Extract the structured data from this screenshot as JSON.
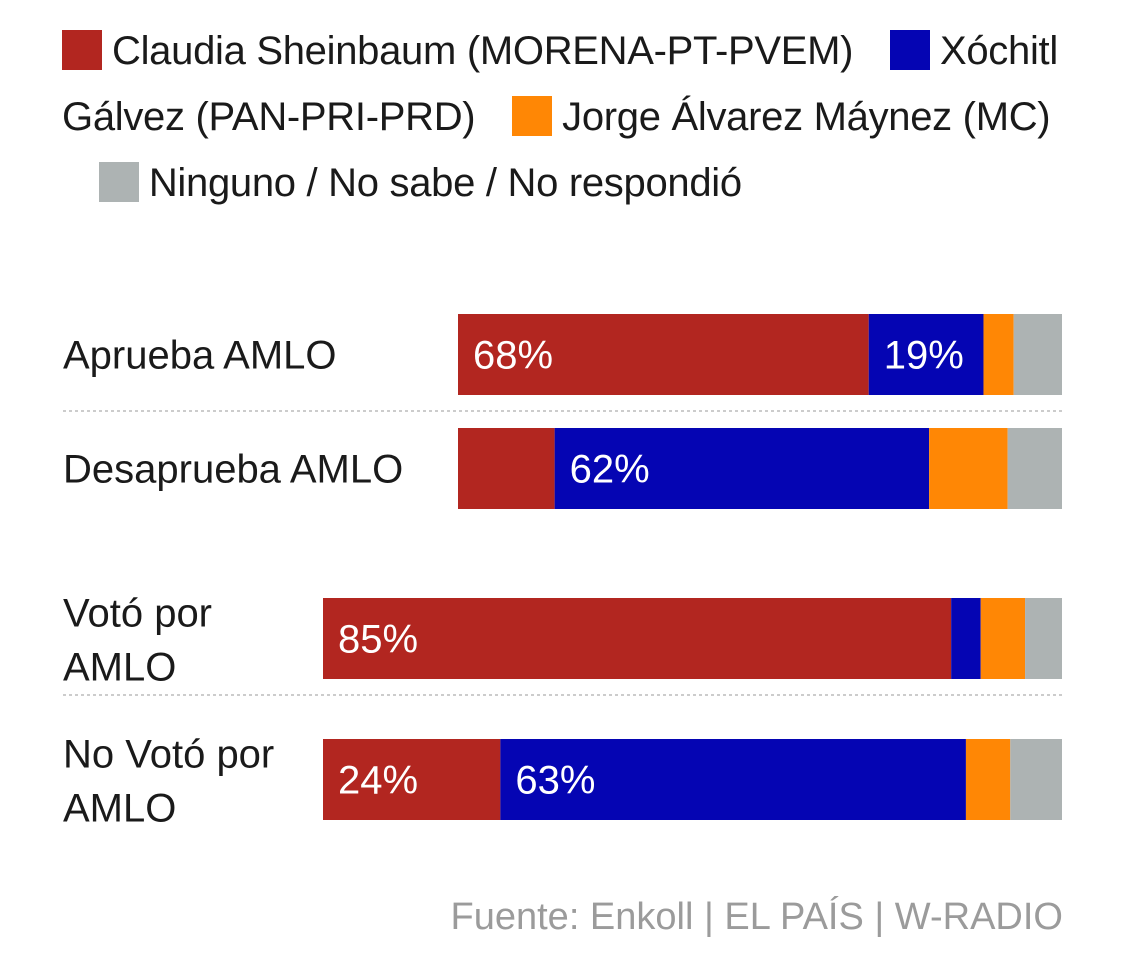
{
  "colors": {
    "sheinbaum": "#b22620",
    "galvez": "#0505b3",
    "maynez": "#ff8705",
    "ninguno": "#adb3b3",
    "separator": "#cccccc",
    "text": "#1a1a1a",
    "source": "#9b9b9b"
  },
  "legend": [
    {
      "label": "Claudia Sheinbaum (MORENA-PT-PVEM)",
      "color": "#b22620"
    },
    {
      "label": "Xóchitl Gálvez (PAN-PRI-PRD)",
      "color": "#0505b3"
    },
    {
      "label": "Jorge Álvarez Máynez (MC)",
      "color": "#ff8705"
    },
    {
      "label": "Ninguno / No sabe / No respondió",
      "color": "#adb3b3"
    }
  ],
  "source": "Fuente: Enkoll | EL PAÍS | W-RADIO",
  "chart_data": [
    {
      "type": "bar",
      "orientation": "horizontal",
      "stacked": true,
      "title": "",
      "xlabel": "",
      "ylabel": "",
      "xlim": [
        0,
        100
      ],
      "grid": false,
      "legend_position": "top",
      "categories": [
        "Aprueba AMLO",
        "Desaprueba AMLO"
      ],
      "series": [
        {
          "name": "Claudia Sheinbaum (MORENA-PT-PVEM)",
          "color": "#b22620",
          "values": [
            68,
            16
          ],
          "labels": [
            "68%",
            ""
          ]
        },
        {
          "name": "Xóchitl Gálvez (PAN-PRI-PRD)",
          "color": "#0505b3",
          "values": [
            19,
            62
          ],
          "labels": [
            "19%",
            "62%"
          ]
        },
        {
          "name": "Jorge Álvarez Máynez (MC)",
          "color": "#ff8705",
          "values": [
            5,
            13
          ],
          "labels": [
            "",
            ""
          ]
        },
        {
          "name": "Ninguno / No sabe / No respondió",
          "color": "#adb3b3",
          "values": [
            8,
            9
          ],
          "labels": [
            "",
            ""
          ]
        }
      ]
    },
    {
      "type": "bar",
      "orientation": "horizontal",
      "stacked": true,
      "title": "",
      "xlabel": "",
      "ylabel": "",
      "xlim": [
        0,
        100
      ],
      "grid": false,
      "legend_position": "top",
      "categories": [
        "Votó por AMLO",
        "No Votó por AMLO"
      ],
      "series": [
        {
          "name": "Claudia Sheinbaum (MORENA-PT-PVEM)",
          "color": "#b22620",
          "values": [
            85,
            24
          ],
          "labels": [
            "85%",
            "24%"
          ]
        },
        {
          "name": "Xóchitl Gálvez (PAN-PRI-PRD)",
          "color": "#0505b3",
          "values": [
            4,
            63
          ],
          "labels": [
            "",
            "63%"
          ]
        },
        {
          "name": "Jorge Álvarez Máynez (MC)",
          "color": "#ff8705",
          "values": [
            6,
            6
          ],
          "labels": [
            "",
            ""
          ]
        },
        {
          "name": "Ninguno / No sabe / No respondió",
          "color": "#adb3b3",
          "values": [
            5,
            7
          ],
          "labels": [
            "",
            ""
          ]
        }
      ]
    }
  ]
}
